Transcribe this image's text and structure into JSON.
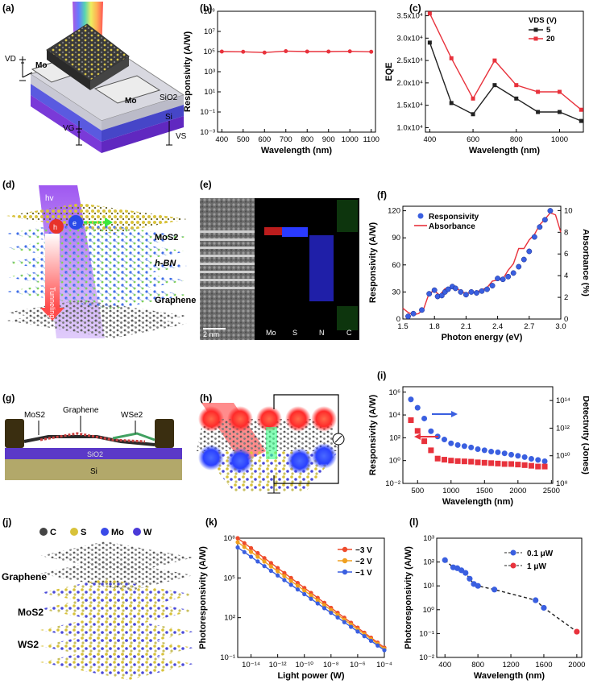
{
  "colors": {
    "red": "#e8323c",
    "black": "#222222",
    "blue": "#3a5fe0",
    "orange": "#f0a020",
    "redOrange": "#ee4b2b",
    "si": "#b2a86a",
    "sio2": "#5b39c8",
    "gold": "#4a3a10"
  },
  "panels": {
    "a": {
      "letter": "(a)",
      "labels": {
        "vd": "VD",
        "mo_left": "Mo",
        "mo_right": "Mo",
        "sio2": "SiO2",
        "si": "Si",
        "vg": "VG",
        "vs": "VS"
      }
    },
    "d": {
      "letter": "(d)",
      "labels": {
        "hv": "hv",
        "h": "h",
        "e": "e",
        "tunneling": "Tunneling",
        "mos2": "MoS2",
        "hbn": "h-BN",
        "graphene": "Graphene"
      }
    },
    "e": {
      "letter": "(e)",
      "scale": "2 nm",
      "labels": [
        "Mo",
        "S",
        "N",
        "C"
      ]
    },
    "g": {
      "letter": "(g)",
      "labels": {
        "mos2": "MoS2",
        "graphene": "Graphene",
        "wse2": "WSe2",
        "sio2": "SiO2",
        "si": "Si"
      }
    },
    "h": {
      "letter": "(h)"
    },
    "j": {
      "letter": "(j)",
      "legend": [
        "C",
        "S",
        "Mo",
        "W"
      ],
      "layers": [
        "Graphene",
        "MoS2",
        "WS2"
      ]
    }
  },
  "chart_data": [
    {
      "id": "b",
      "letter": "(b)",
      "type": "line",
      "scale": "log",
      "xlabel": "Wavelength (nm)",
      "ylabel": "Responsivity (A/W)",
      "xlim": [
        400,
        1100
      ],
      "ylim": [
        0.001,
        1000000000
      ],
      "xticks": [
        400,
        500,
        600,
        700,
        800,
        900,
        1000,
        1100
      ],
      "ytick_labels": [
        "10⁹",
        "10⁷",
        "10⁵",
        "10³",
        "10¹",
        "10⁻¹",
        "10⁻³"
      ],
      "series": [
        {
          "name": "responsivity",
          "color": "#e8323c",
          "x": [
            400,
            500,
            600,
            700,
            800,
            900,
            1000,
            1100
          ],
          "y": [
            100000,
            95000,
            80000,
            110000,
            100000,
            100000,
            105000,
            95000
          ]
        }
      ]
    },
    {
      "id": "c",
      "letter": "(c)",
      "type": "line",
      "xlabel": "Wavelength (nm)",
      "ylabel": "EQE",
      "xlim": [
        380,
        1110
      ],
      "ylim": [
        9000,
        36000
      ],
      "xticks": [
        400,
        600,
        800,
        1000
      ],
      "ytick_labels": [
        "3.5x10⁴",
        "3.0x10⁴",
        "2.5x10⁴",
        "2.0x10⁴",
        "1.5x10⁴",
        "1.0x10⁴"
      ],
      "legend_title": "VDS (V)",
      "series": [
        {
          "name": "5",
          "color": "#222222",
          "x": [
            400,
            500,
            600,
            700,
            800,
            900,
            1000,
            1100
          ],
          "y": [
            29000,
            15500,
            13000,
            19500,
            16500,
            13500,
            13500,
            11500
          ]
        },
        {
          "name": "20",
          "color": "#e8323c",
          "x": [
            400,
            500,
            600,
            700,
            800,
            900,
            1000,
            1100
          ],
          "y": [
            35500,
            25500,
            16500,
            25000,
            19500,
            18000,
            18000,
            14000
          ]
        }
      ]
    },
    {
      "id": "f",
      "letter": "(f)",
      "type": "scatter+line",
      "xlabel": "Photon energy (eV)",
      "ylabel": "Responsivity (A/W)",
      "y2label": "Absorbance (%)",
      "xlim": [
        1.5,
        3.0
      ],
      "ylim": [
        0,
        125
      ],
      "y2lim": [
        0,
        10.4
      ],
      "xtick_labels": [
        "1.5",
        "1.8",
        "2.1",
        "2.4",
        "2.7",
        "3.0"
      ],
      "ytick_labels": [
        "0",
        "30",
        "60",
        "90",
        "120"
      ],
      "y2tick_labels": [
        "0",
        "2",
        "4",
        "6",
        "8",
        "10"
      ],
      "series": [
        {
          "name": "Responsivity",
          "color": "#3a5fe0",
          "x": [
            1.55,
            1.6,
            1.68,
            1.75,
            1.8,
            1.83,
            1.87,
            1.9,
            1.93,
            1.97,
            2.0,
            2.05,
            2.1,
            2.15,
            2.2,
            2.25,
            2.3,
            2.35,
            2.4,
            2.45,
            2.5,
            2.55,
            2.6,
            2.65,
            2.7,
            2.75,
            2.8,
            2.85,
            2.9
          ],
          "y": [
            3,
            6,
            10,
            28,
            32,
            25,
            26,
            30,
            33,
            36,
            34,
            30,
            27,
            30,
            29,
            31,
            33,
            37,
            45,
            44,
            47,
            51,
            58,
            66,
            75,
            91,
            102,
            110,
            120
          ]
        },
        {
          "name": "Absorbance",
          "color": "#e8323c",
          "x": [
            1.5,
            1.55,
            1.6,
            1.65,
            1.7,
            1.75,
            1.8,
            1.85,
            1.9,
            1.95,
            2.0,
            2.05,
            2.1,
            2.15,
            2.2,
            2.25,
            2.3,
            2.35,
            2.4,
            2.45,
            2.5,
            2.55,
            2.6,
            2.65,
            2.7,
            2.75,
            2.8,
            2.85,
            2.9,
            2.95,
            3.0
          ],
          "y": [
            1.0,
            0.6,
            0.4,
            0.5,
            1.0,
            2.4,
            2.6,
            2.2,
            2.8,
            2.8,
            3.0,
            2.5,
            2.4,
            2.4,
            2.5,
            2.7,
            2.9,
            3.5,
            3.6,
            3.7,
            4.5,
            5.1,
            6.5,
            6.5,
            7.3,
            7.8,
            8.7,
            9.2,
            9.8,
            9.6,
            8.0
          ]
        }
      ]
    },
    {
      "id": "i",
      "letter": "(i)",
      "type": "scatter",
      "scale": "log",
      "xlabel": "Wavelength (nm)",
      "ylabel": "Responsivity (A/W)",
      "y2label": "Detectivity (Jones)",
      "xlim": [
        280,
        2520
      ],
      "ylim": [
        0.01,
        3000000
      ],
      "y2lim": [
        100000000,
        1000000000000000
      ],
      "xtick_labels": [
        "500",
        "1000",
        "1500",
        "2000",
        "2500"
      ],
      "ytick_labels": [
        "10⁶",
        "10⁴",
        "10²",
        "10⁰",
        "10⁻²"
      ],
      "y2tick_labels": [
        "10¹⁴",
        "10¹²",
        "10¹⁰",
        "10⁸"
      ],
      "series": [
        {
          "name": "Detectivity",
          "axis": "y2",
          "color": "#3a5fe0",
          "marker": "circle",
          "x": [
            400,
            500,
            600,
            700,
            800,
            900,
            1000,
            1100,
            1200,
            1300,
            1400,
            1500,
            1600,
            1700,
            1800,
            1900,
            2000,
            2100,
            2200,
            2300,
            2400
          ],
          "y": [
            120000000000000.0,
            30000000000000.0,
            5000000000000.0,
            600000000000.0,
            250000000000.0,
            150000000000.0,
            80000000000.0,
            60000000000.0,
            50000000000.0,
            40000000000.0,
            30000000000.0,
            25000000000.0,
            20000000000.0,
            18000000000.0,
            15000000000.0,
            12000000000.0,
            10000000000.0,
            8000000000.0,
            6000000000.0,
            5000000000.0,
            4000000000.0
          ]
        },
        {
          "name": "Responsivity",
          "axis": "y",
          "color": "#e8323c",
          "marker": "square",
          "x": [
            400,
            500,
            600,
            700,
            800,
            900,
            1000,
            1100,
            1200,
            1300,
            1400,
            1500,
            1600,
            1700,
            1800,
            1900,
            2000,
            2100,
            2200,
            2300,
            2400
          ],
          "y": [
            3500,
            400,
            50,
            8,
            1.5,
            1.2,
            1.0,
            0.9,
            0.85,
            0.8,
            0.7,
            0.65,
            0.6,
            0.55,
            0.5,
            0.5,
            0.45,
            0.4,
            0.35,
            0.3,
            0.3
          ]
        }
      ]
    },
    {
      "id": "k",
      "letter": "(k)",
      "type": "line",
      "scale": "loglog",
      "xlabel": "Light power (W)",
      "ylabel": "Photoresponsivity (A/W)",
      "xlim": [
        1e-15,
        0.0001
      ],
      "ylim": [
        0.1,
        100000000
      ],
      "xtick_labels": [
        "10⁻¹⁴",
        "10⁻¹²",
        "10⁻¹⁰",
        "10⁻⁸",
        "10⁻⁶",
        "10⁻⁴"
      ],
      "ytick_labels": [
        "10⁸",
        "10⁵",
        "10²",
        "10⁻¹"
      ],
      "series": [
        {
          "name": "−3 V",
          "color": "#ee4b2b",
          "x": [
            1e-15,
            0.0001
          ],
          "y": [
            100000000,
            0.55
          ]
        },
        {
          "name": "−2 V",
          "color": "#f0a020",
          "x": [
            1e-15,
            0.0001
          ],
          "y": [
            50000000,
            0.45
          ]
        },
        {
          "name": "−1 V",
          "color": "#3a5fe0",
          "x": [
            1e-15,
            0.0001
          ],
          "y": [
            20000000,
            0.35
          ]
        }
      ]
    },
    {
      "id": "l",
      "letter": "(l)",
      "type": "scatter+line",
      "scale": "log",
      "xlabel": "Wavelength (nm)",
      "ylabel": "Photoresponsivity (A/W)",
      "xlim": [
        300,
        2060
      ],
      "ylim": [
        0.01,
        1000
      ],
      "xtick_labels": [
        "400",
        "800",
        "1200",
        "1600",
        "2000"
      ],
      "ytick_labels": [
        "10³",
        "10²",
        "10¹",
        "10⁰",
        "10⁻¹",
        "10⁻²"
      ],
      "series": [
        {
          "name": "0.1 μW",
          "color": "#3a5fe0",
          "x": [
            400,
            500,
            550,
            600,
            650,
            700,
            750,
            800,
            1000,
            1500,
            1600
          ],
          "y": [
            120,
            60,
            55,
            45,
            35,
            20,
            12,
            10,
            7,
            2.5,
            1.2
          ]
        },
        {
          "name": "1 μW",
          "color": "#e8323c",
          "x": [
            2000
          ],
          "y": [
            0.12
          ]
        }
      ]
    }
  ]
}
